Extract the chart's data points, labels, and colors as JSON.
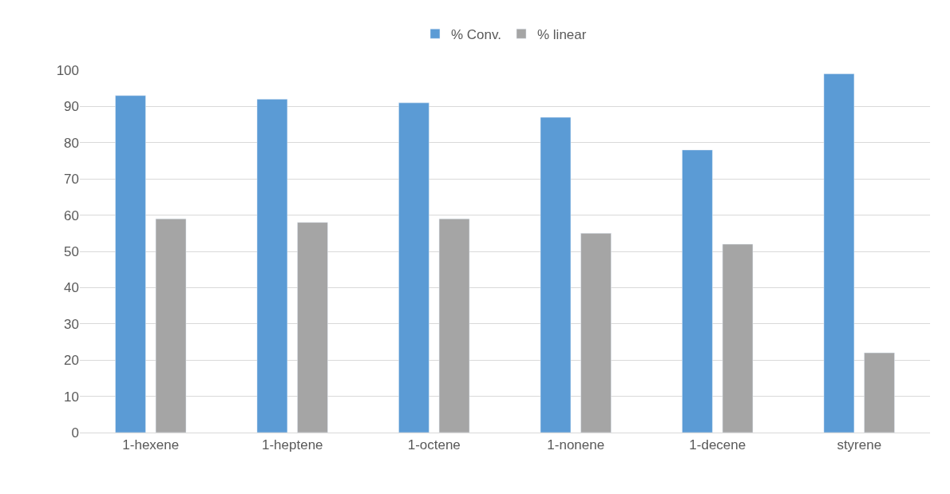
{
  "chart_data": {
    "type": "bar",
    "categories": [
      "1-hexene",
      "1-heptene",
      "1-octene",
      "1-nonene",
      "1-decene",
      "styrene"
    ],
    "series": [
      {
        "name": "% Conv.",
        "color": "#5b9bd5",
        "values": [
          93,
          92,
          91,
          87,
          78,
          99
        ]
      },
      {
        "name": "% linear",
        "color": "#a5a5a5",
        "values": [
          59,
          58,
          59,
          55,
          52,
          22
        ]
      }
    ],
    "ylim": [
      0,
      100
    ],
    "yticks": [
      0,
      10,
      20,
      30,
      40,
      50,
      60,
      70,
      80,
      90,
      100
    ],
    "grid": "y",
    "legend": "top"
  }
}
